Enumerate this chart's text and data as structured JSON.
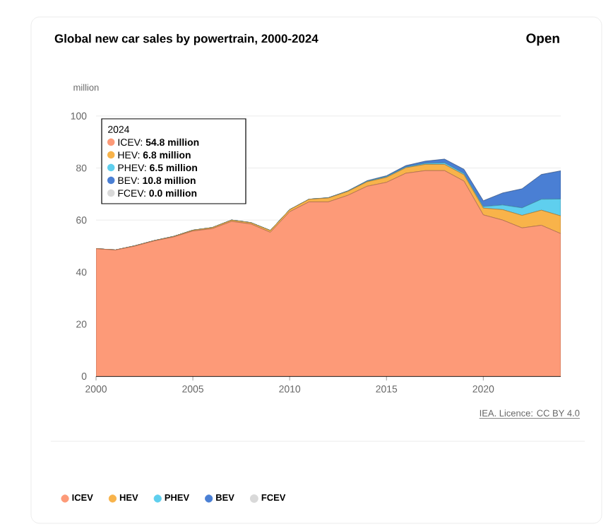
{
  "chart_data": {
    "type": "area",
    "title": "Global new car sales by powertrain, 2000-2024",
    "ylabel": "million",
    "stacked": true,
    "grid": "y",
    "legend": "bottom",
    "x": [
      2000,
      2001,
      2002,
      2003,
      2004,
      2005,
      2006,
      2007,
      2008,
      2009,
      2010,
      2011,
      2012,
      2013,
      2014,
      2015,
      2016,
      2017,
      2018,
      2019,
      2020,
      2021,
      2022,
      2023,
      2024
    ],
    "xlim": [
      2000,
      2024
    ],
    "xticks": [
      2000,
      2005,
      2010,
      2015,
      2020
    ],
    "ylim": [
      0,
      100
    ],
    "yticks": [
      0,
      20,
      40,
      60,
      80,
      100
    ],
    "series": [
      {
        "name": "ICEV",
        "color": "#fd9a78",
        "values": [
          49,
          48.5,
          50,
          52,
          53.5,
          55.8,
          56.7,
          59.5,
          58.5,
          55.3,
          63.2,
          67,
          67,
          69.5,
          73,
          74.5,
          78,
          79,
          79,
          75,
          62,
          60,
          57,
          58,
          54.8
        ]
      },
      {
        "name": "HEV",
        "color": "#f8b34a",
        "values": [
          0,
          0,
          0.1,
          0.1,
          0.2,
          0.3,
          0.4,
          0.5,
          0.5,
          0.7,
          0.8,
          1,
          1.5,
          1.5,
          1.7,
          1.9,
          2.1,
          2.4,
          2.4,
          2.4,
          2.6,
          4,
          4.8,
          5.8,
          6.8
        ]
      },
      {
        "name": "PHEV",
        "color": "#5fcfee",
        "values": [
          0,
          0,
          0,
          0,
          0,
          0,
          0,
          0,
          0,
          0,
          0,
          0,
          0,
          0.1,
          0.2,
          0.3,
          0.3,
          0.4,
          0.6,
          0.5,
          0.6,
          1.8,
          2.9,
          4.2,
          6.5
        ]
      },
      {
        "name": "BEV",
        "color": "#4a7fd4",
        "values": [
          0,
          0,
          0,
          0,
          0,
          0,
          0,
          0,
          0,
          0,
          0,
          0,
          0.1,
          0.1,
          0.2,
          0.3,
          0.5,
          0.8,
          1.4,
          1.6,
          2.2,
          4.6,
          7.3,
          9.5,
          10.8
        ]
      },
      {
        "name": "FCEV",
        "type": "line",
        "color": "#d9d9d9",
        "values": [
          0,
          0,
          0,
          0,
          0,
          0,
          0,
          0,
          0,
          0,
          0,
          0,
          0,
          0,
          0,
          0,
          0,
          0,
          0,
          0,
          0,
          0,
          0,
          0,
          0
        ]
      }
    ],
    "annotations": [
      "2024",
      "ICEV: **54.8 million**",
      "HEV: **6.8 million**",
      "PHEV: **6.5 million**",
      "BEV: **10.8 million**",
      "FCEV: **0.0 million**",
      "IEA. Licence: CC BY 4.0",
      "Open"
    ]
  }
}
